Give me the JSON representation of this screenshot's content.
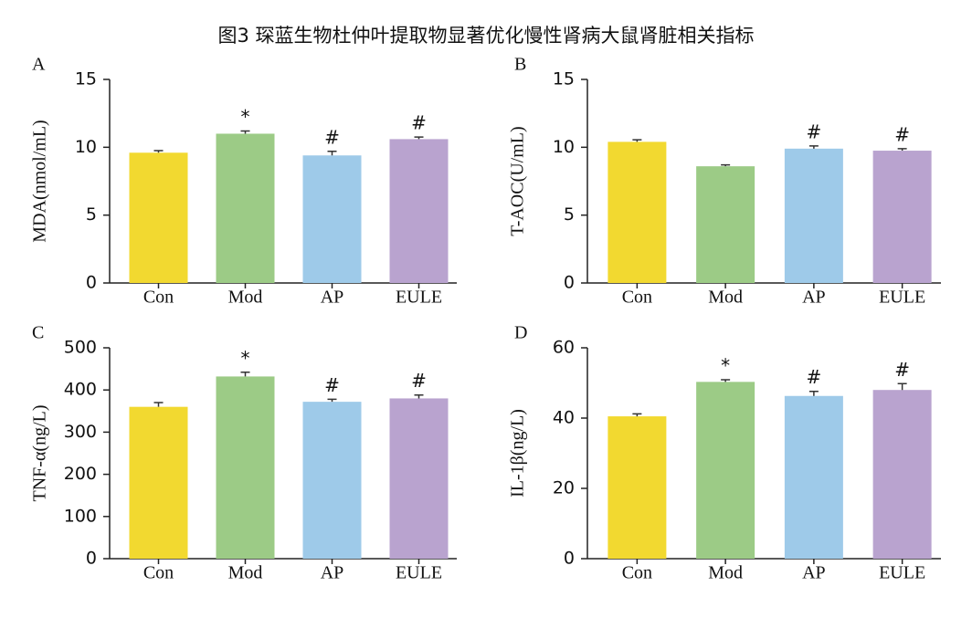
{
  "title": "图3 琛蓝生物杜仲叶提取物显著优化慢性肾病大鼠肾脏相关指标",
  "chart_data": [
    {
      "type": "bar",
      "panel": "A",
      "ylabel": "MDA(nmol/mL)",
      "categories": [
        "Con",
        "Mod",
        "AP",
        "EULE"
      ],
      "values": [
        9.6,
        11.0,
        9.4,
        10.6
      ],
      "errors": [
        0.15,
        0.2,
        0.3,
        0.15
      ],
      "annotations": [
        null,
        "*",
        "#",
        "#"
      ],
      "colors": [
        "#f2d930",
        "#9ccb86",
        "#9ecae9",
        "#b9a3cf"
      ],
      "ylim": [
        0,
        15
      ],
      "yticks": [
        0,
        5,
        10,
        15
      ]
    },
    {
      "type": "bar",
      "panel": "B",
      "ylabel": "T-AOC(U/mL)",
      "categories": [
        "Con",
        "Mod",
        "AP",
        "EULE"
      ],
      "values": [
        10.4,
        8.6,
        9.9,
        9.75
      ],
      "errors": [
        0.15,
        0.1,
        0.2,
        0.15
      ],
      "annotations": [
        null,
        null,
        "#",
        "#"
      ],
      "colors": [
        "#f2d930",
        "#9ccb86",
        "#9ecae9",
        "#b9a3cf"
      ],
      "ylim": [
        0,
        15
      ],
      "yticks": [
        0,
        5,
        10,
        15
      ]
    },
    {
      "type": "bar",
      "panel": "C",
      "ylabel": "TNF-α(ng/L)",
      "categories": [
        "Con",
        "Mod",
        "AP",
        "EULE"
      ],
      "values": [
        360,
        432,
        372,
        380
      ],
      "errors": [
        10,
        10,
        6,
        8
      ],
      "annotations": [
        null,
        "*",
        "#",
        "#"
      ],
      "colors": [
        "#f2d930",
        "#9ccb86",
        "#9ecae9",
        "#b9a3cf"
      ],
      "ylim": [
        0,
        500
      ],
      "yticks": [
        0,
        100,
        200,
        300,
        400,
        500
      ]
    },
    {
      "type": "bar",
      "panel": "D",
      "ylabel": "IL-1β(ng/L)",
      "categories": [
        "Con",
        "Mod",
        "AP",
        "EULE"
      ],
      "values": [
        40.5,
        50.3,
        46.3,
        48
      ],
      "errors": [
        0.7,
        0.6,
        1.3,
        1.8
      ],
      "annotations": [
        null,
        "*",
        "#",
        "#"
      ],
      "colors": [
        "#f2d930",
        "#9ccb86",
        "#9ecae9",
        "#b9a3cf"
      ],
      "ylim": [
        0,
        60
      ],
      "yticks": [
        0,
        20,
        40,
        60
      ]
    }
  ]
}
